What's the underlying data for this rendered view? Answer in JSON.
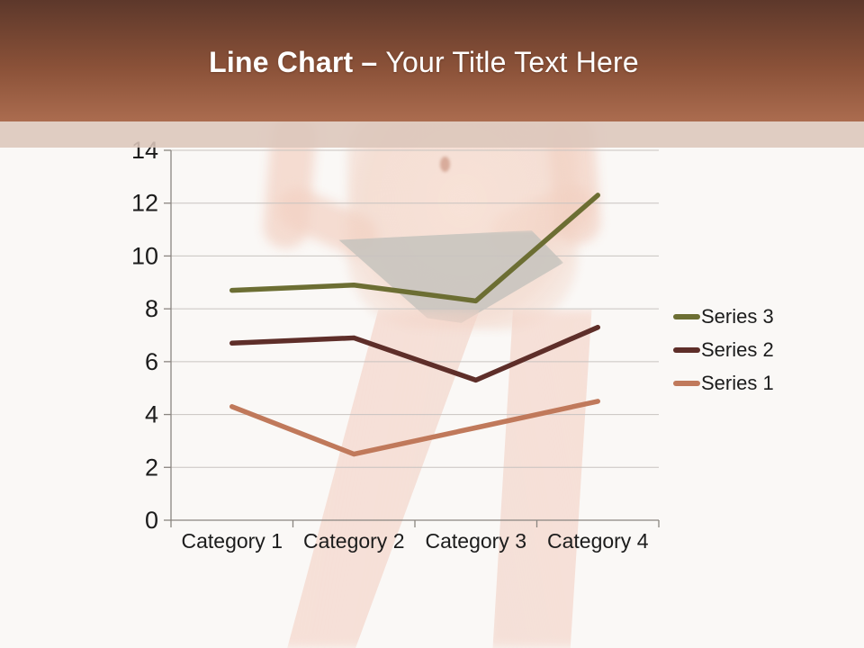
{
  "slide": {
    "background_color": "#faf8f6",
    "header": {
      "title_bold": "Line Chart",
      "title_dash": "–",
      "title_rest": "Your Title Text Here",
      "gradient_top": "#5d382b",
      "gradient_bottom": "#ab6c4f",
      "band_color": "rgba(220,198,187,0.88)"
    }
  },
  "chart_data": {
    "type": "line",
    "title": "",
    "xlabel": "",
    "ylabel": "",
    "categories": [
      "Category 1",
      "Category 2",
      "Category 3",
      "Category 4"
    ],
    "series": [
      {
        "name": "Series 1",
        "values": [
          4.3,
          2.5,
          3.5,
          4.5
        ],
        "color": "#c0795b"
      },
      {
        "name": "Series 2",
        "values": [
          6.7,
          6.9,
          5.3,
          7.3
        ],
        "color": "#5e2e29"
      },
      {
        "name": "Series 3",
        "values": [
          8.7,
          8.9,
          8.3,
          12.3
        ],
        "color": "#6c6e33"
      }
    ],
    "legend": {
      "position": "right",
      "entries": [
        "Series 3",
        "Series 2",
        "Series 1"
      ]
    },
    "ylim": [
      0,
      14
    ],
    "ytick_step": 2,
    "grid": true,
    "colors": {
      "axis": "#8a8580",
      "grid": "#c8c3c0",
      "text": "#1c1c1c"
    }
  }
}
